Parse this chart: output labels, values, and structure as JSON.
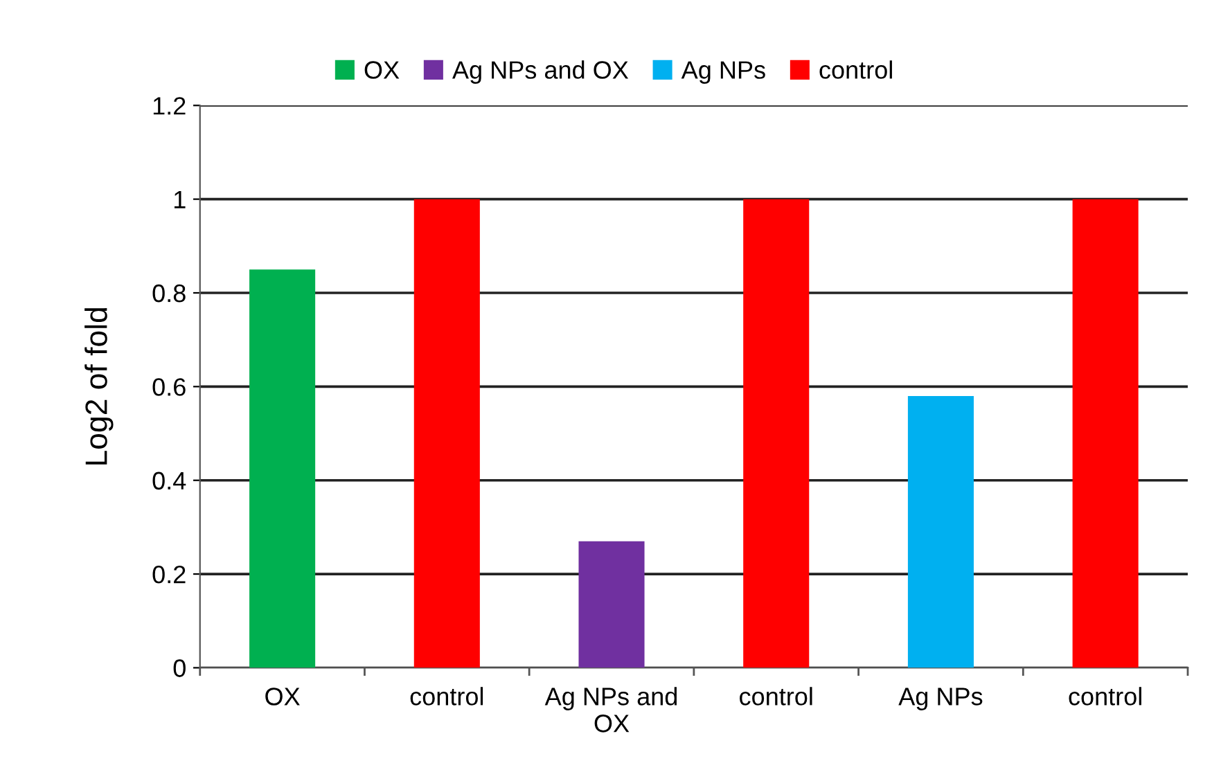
{
  "chart_data": {
    "type": "bar",
    "ylabel": "Log2 of fold",
    "categories": [
      "OX",
      "control",
      "Ag NPs and\nOX",
      "control",
      "Ag NPs",
      "control"
    ],
    "series": [
      {
        "name": "OX",
        "color": "#00b050",
        "values": [
          0.85,
          null,
          null,
          null,
          null,
          null
        ]
      },
      {
        "name": "Ag NPs and OX",
        "color": "#7030a0",
        "values": [
          null,
          null,
          0.27,
          null,
          null,
          null
        ]
      },
      {
        "name": "Ag NPs",
        "color": "#00b0f0",
        "values": [
          null,
          null,
          null,
          null,
          0.58,
          null
        ]
      },
      {
        "name": "control",
        "color": "#ff0000",
        "values": [
          null,
          1,
          null,
          1,
          null,
          1
        ]
      }
    ],
    "ylim": [
      0,
      1.2
    ],
    "yticks": [
      0,
      0.2,
      0.4,
      0.6,
      0.8,
      1,
      1.2
    ],
    "grid": "y",
    "legend": "top"
  }
}
